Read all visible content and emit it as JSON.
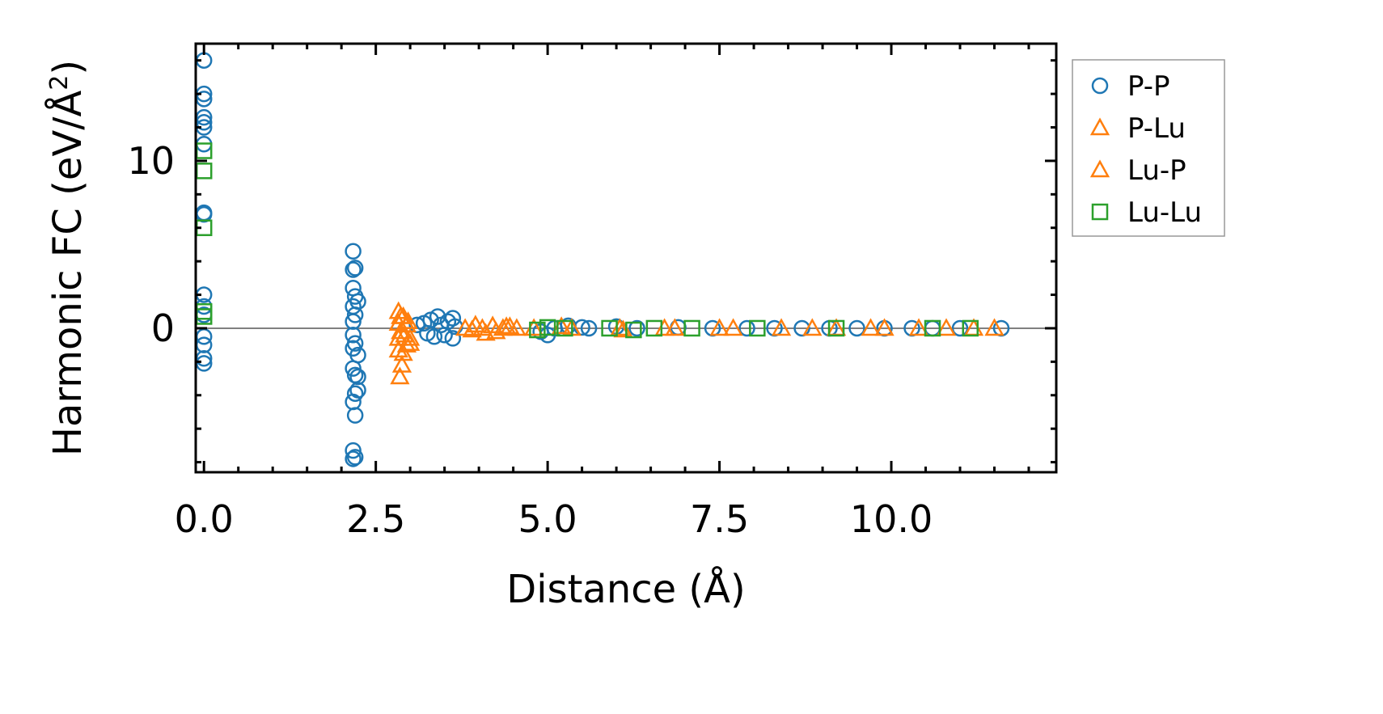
{
  "chart_data": {
    "type": "scatter",
    "title": "",
    "xlabel": "Distance (Å)",
    "ylabel": "Harmonic FC (eV/Å",
    "ylabel_sup": "2",
    "ylabel_end": ")",
    "xlim": [
      -0.12,
      12.4
    ],
    "ylim": [
      -8.6,
      17.0
    ],
    "xticks": [
      0.0,
      2.5,
      5.0,
      7.5,
      10.0
    ],
    "xtick_labels": [
      "0.0",
      "2.5",
      "5.0",
      "7.5",
      "10.0"
    ],
    "yticks": [
      0,
      10
    ],
    "ytick_labels": [
      "0",
      "10"
    ],
    "x_minor_step": 0.5,
    "y_minor_step": 2,
    "zero_line": true,
    "legend_position": "outside-right",
    "series": [
      {
        "name": "P-P",
        "marker": "circle",
        "color": "#1f77b4",
        "points": [
          [
            0,
            16.0
          ],
          [
            0,
            14.0
          ],
          [
            0,
            13.7
          ],
          [
            0,
            12.6
          ],
          [
            0,
            12.3
          ],
          [
            0,
            12.0
          ],
          [
            0,
            11.0
          ],
          [
            0,
            6.9
          ],
          [
            0,
            6.8
          ],
          [
            0,
            2.0
          ],
          [
            0,
            1.3
          ],
          [
            0,
            0.8
          ],
          [
            0,
            -0.5
          ],
          [
            0,
            -1.0
          ],
          [
            0,
            -1.8
          ],
          [
            0,
            -2.1
          ],
          [
            2.17,
            4.6
          ],
          [
            2.17,
            3.5
          ],
          [
            2.17,
            2.4
          ],
          [
            2.17,
            1.3
          ],
          [
            2.17,
            0.4
          ],
          [
            2.17,
            -0.4
          ],
          [
            2.17,
            -1.2
          ],
          [
            2.17,
            -2.4
          ],
          [
            2.17,
            -4.4
          ],
          [
            2.17,
            -7.3
          ],
          [
            2.17,
            -7.8
          ],
          [
            2.2,
            3.6
          ],
          [
            2.2,
            1.9
          ],
          [
            2.2,
            0.8
          ],
          [
            2.2,
            -0.9
          ],
          [
            2.2,
            -2.8
          ],
          [
            2.2,
            -3.9
          ],
          [
            2.2,
            -5.2
          ],
          [
            2.2,
            -7.7
          ],
          [
            2.24,
            1.6
          ],
          [
            2.24,
            -1.6
          ],
          [
            2.24,
            -2.9
          ],
          [
            2.24,
            -3.7
          ],
          [
            3.1,
            0.2
          ],
          [
            3.2,
            0.3
          ],
          [
            3.25,
            -0.3
          ],
          [
            3.3,
            0.5
          ],
          [
            3.35,
            -0.5
          ],
          [
            3.4,
            0.7
          ],
          [
            3.45,
            0.2
          ],
          [
            3.5,
            -0.4
          ],
          [
            3.55,
            0.4
          ],
          [
            3.62,
            0.6
          ],
          [
            3.62,
            -0.6
          ],
          [
            3.65,
            0.1
          ],
          [
            4.9,
            -0.2
          ],
          [
            5.0,
            -0.4
          ],
          [
            5.1,
            0.0
          ],
          [
            5.3,
            0.15
          ],
          [
            5.5,
            0.05
          ],
          [
            5.6,
            0.0
          ],
          [
            6.0,
            0.1
          ],
          [
            6.3,
            0.0
          ],
          [
            6.9,
            0.05
          ],
          [
            7.4,
            0.0
          ],
          [
            7.9,
            0.0
          ],
          [
            8.3,
            0.0
          ],
          [
            8.7,
            0.0
          ],
          [
            9.1,
            0.0
          ],
          [
            9.5,
            0.0
          ],
          [
            9.9,
            0.0
          ],
          [
            10.3,
            0.0
          ],
          [
            10.6,
            0.0
          ],
          [
            11.0,
            0.0
          ],
          [
            11.6,
            0.0
          ]
        ]
      },
      {
        "name": "P-Lu",
        "marker": "triangle",
        "color": "#ff7f0e",
        "points": [
          [
            2.83,
            1.0
          ],
          [
            2.83,
            0.3
          ],
          [
            2.83,
            -0.6
          ],
          [
            2.83,
            -1.3
          ],
          [
            2.85,
            -2.9
          ],
          [
            2.88,
            -2.2
          ],
          [
            2.9,
            0.7
          ],
          [
            2.92,
            -0.4
          ],
          [
            2.95,
            -1.0
          ],
          [
            2.97,
            0.4
          ],
          [
            3.0,
            -0.9
          ],
          [
            3.8,
            0.0
          ],
          [
            3.95,
            0.2
          ],
          [
            4.1,
            -0.3
          ],
          [
            4.2,
            0.15
          ],
          [
            4.35,
            0.0
          ],
          [
            4.45,
            0.1
          ],
          [
            4.55,
            0.0
          ],
          [
            4.8,
            0.0
          ],
          [
            5.2,
            0.1
          ],
          [
            6.1,
            -0.1
          ],
          [
            6.7,
            0.0
          ],
          [
            7.5,
            0.0
          ],
          [
            8.4,
            0.0
          ],
          [
            9.2,
            0.0
          ],
          [
            9.9,
            0.0
          ],
          [
            10.8,
            0.0
          ],
          [
            11.5,
            0.0
          ]
        ]
      },
      {
        "name": "Lu-P",
        "marker": "triangle",
        "color": "#ff7f0e",
        "points": [
          [
            2.86,
            0.7
          ],
          [
            2.86,
            -0.2
          ],
          [
            2.9,
            -1.5
          ],
          [
            2.95,
            0.2
          ],
          [
            3.0,
            -0.6
          ],
          [
            3.9,
            -0.1
          ],
          [
            4.05,
            0.0
          ],
          [
            4.25,
            -0.2
          ],
          [
            4.4,
            0.1
          ],
          [
            5.35,
            0.0
          ],
          [
            6.05,
            0.0
          ],
          [
            6.85,
            0.0
          ],
          [
            7.7,
            0.0
          ],
          [
            8.85,
            0.0
          ],
          [
            9.7,
            0.0
          ],
          [
            10.4,
            0.0
          ],
          [
            11.2,
            0.0
          ]
        ]
      },
      {
        "name": "Lu-Lu",
        "marker": "square",
        "color": "#2ca02c",
        "points": [
          [
            0,
            10.6
          ],
          [
            0,
            9.4
          ],
          [
            0,
            6.0
          ],
          [
            0,
            1.0
          ],
          [
            0,
            0.7
          ],
          [
            4.85,
            -0.1
          ],
          [
            5.0,
            0.05
          ],
          [
            5.25,
            0.0
          ],
          [
            5.9,
            0.0
          ],
          [
            6.25,
            -0.1
          ],
          [
            6.55,
            0.0
          ],
          [
            7.1,
            0.0
          ],
          [
            8.05,
            0.0
          ],
          [
            9.2,
            0.0
          ],
          [
            10.6,
            0.0
          ],
          [
            11.15,
            0.0
          ]
        ]
      }
    ]
  }
}
